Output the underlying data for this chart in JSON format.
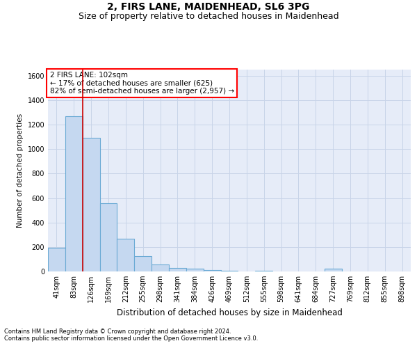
{
  "title1": "2, FIRS LANE, MAIDENHEAD, SL6 3PG",
  "title2": "Size of property relative to detached houses in Maidenhead",
  "xlabel": "Distribution of detached houses by size in Maidenhead",
  "ylabel": "Number of detached properties",
  "footnote1": "Contains HM Land Registry data © Crown copyright and database right 2024.",
  "footnote2": "Contains public sector information licensed under the Open Government Licence v3.0.",
  "annotation_line1": "2 FIRS LANE: 102sqm",
  "annotation_line2": "← 17% of detached houses are smaller (625)",
  "annotation_line3": "82% of semi-detached houses are larger (2,957) →",
  "bar_color": "#c5d8f0",
  "bar_edge_color": "#6aaad4",
  "vline_color": "#cc0000",
  "vline_position": 1.5,
  "categories": [
    "41sqm",
    "83sqm",
    "126sqm",
    "169sqm",
    "212sqm",
    "255sqm",
    "298sqm",
    "341sqm",
    "384sqm",
    "426sqm",
    "469sqm",
    "512sqm",
    "555sqm",
    "598sqm",
    "641sqm",
    "684sqm",
    "727sqm",
    "769sqm",
    "812sqm",
    "855sqm",
    "898sqm"
  ],
  "values": [
    195,
    1270,
    1090,
    555,
    265,
    125,
    55,
    30,
    20,
    10,
    5,
    2,
    8,
    2,
    2,
    2,
    20,
    2,
    2,
    2,
    2
  ],
  "ylim": [
    0,
    1650
  ],
  "yticks": [
    0,
    200,
    400,
    600,
    800,
    1000,
    1200,
    1400,
    1600
  ],
  "grid_color": "#c8d4e8",
  "bg_color": "#e6ecf8",
  "title1_fontsize": 10,
  "title2_fontsize": 9,
  "xlabel_fontsize": 8.5,
  "ylabel_fontsize": 7.5,
  "tick_fontsize": 7,
  "annotation_fontsize": 7.5,
  "footnote_fontsize": 6
}
